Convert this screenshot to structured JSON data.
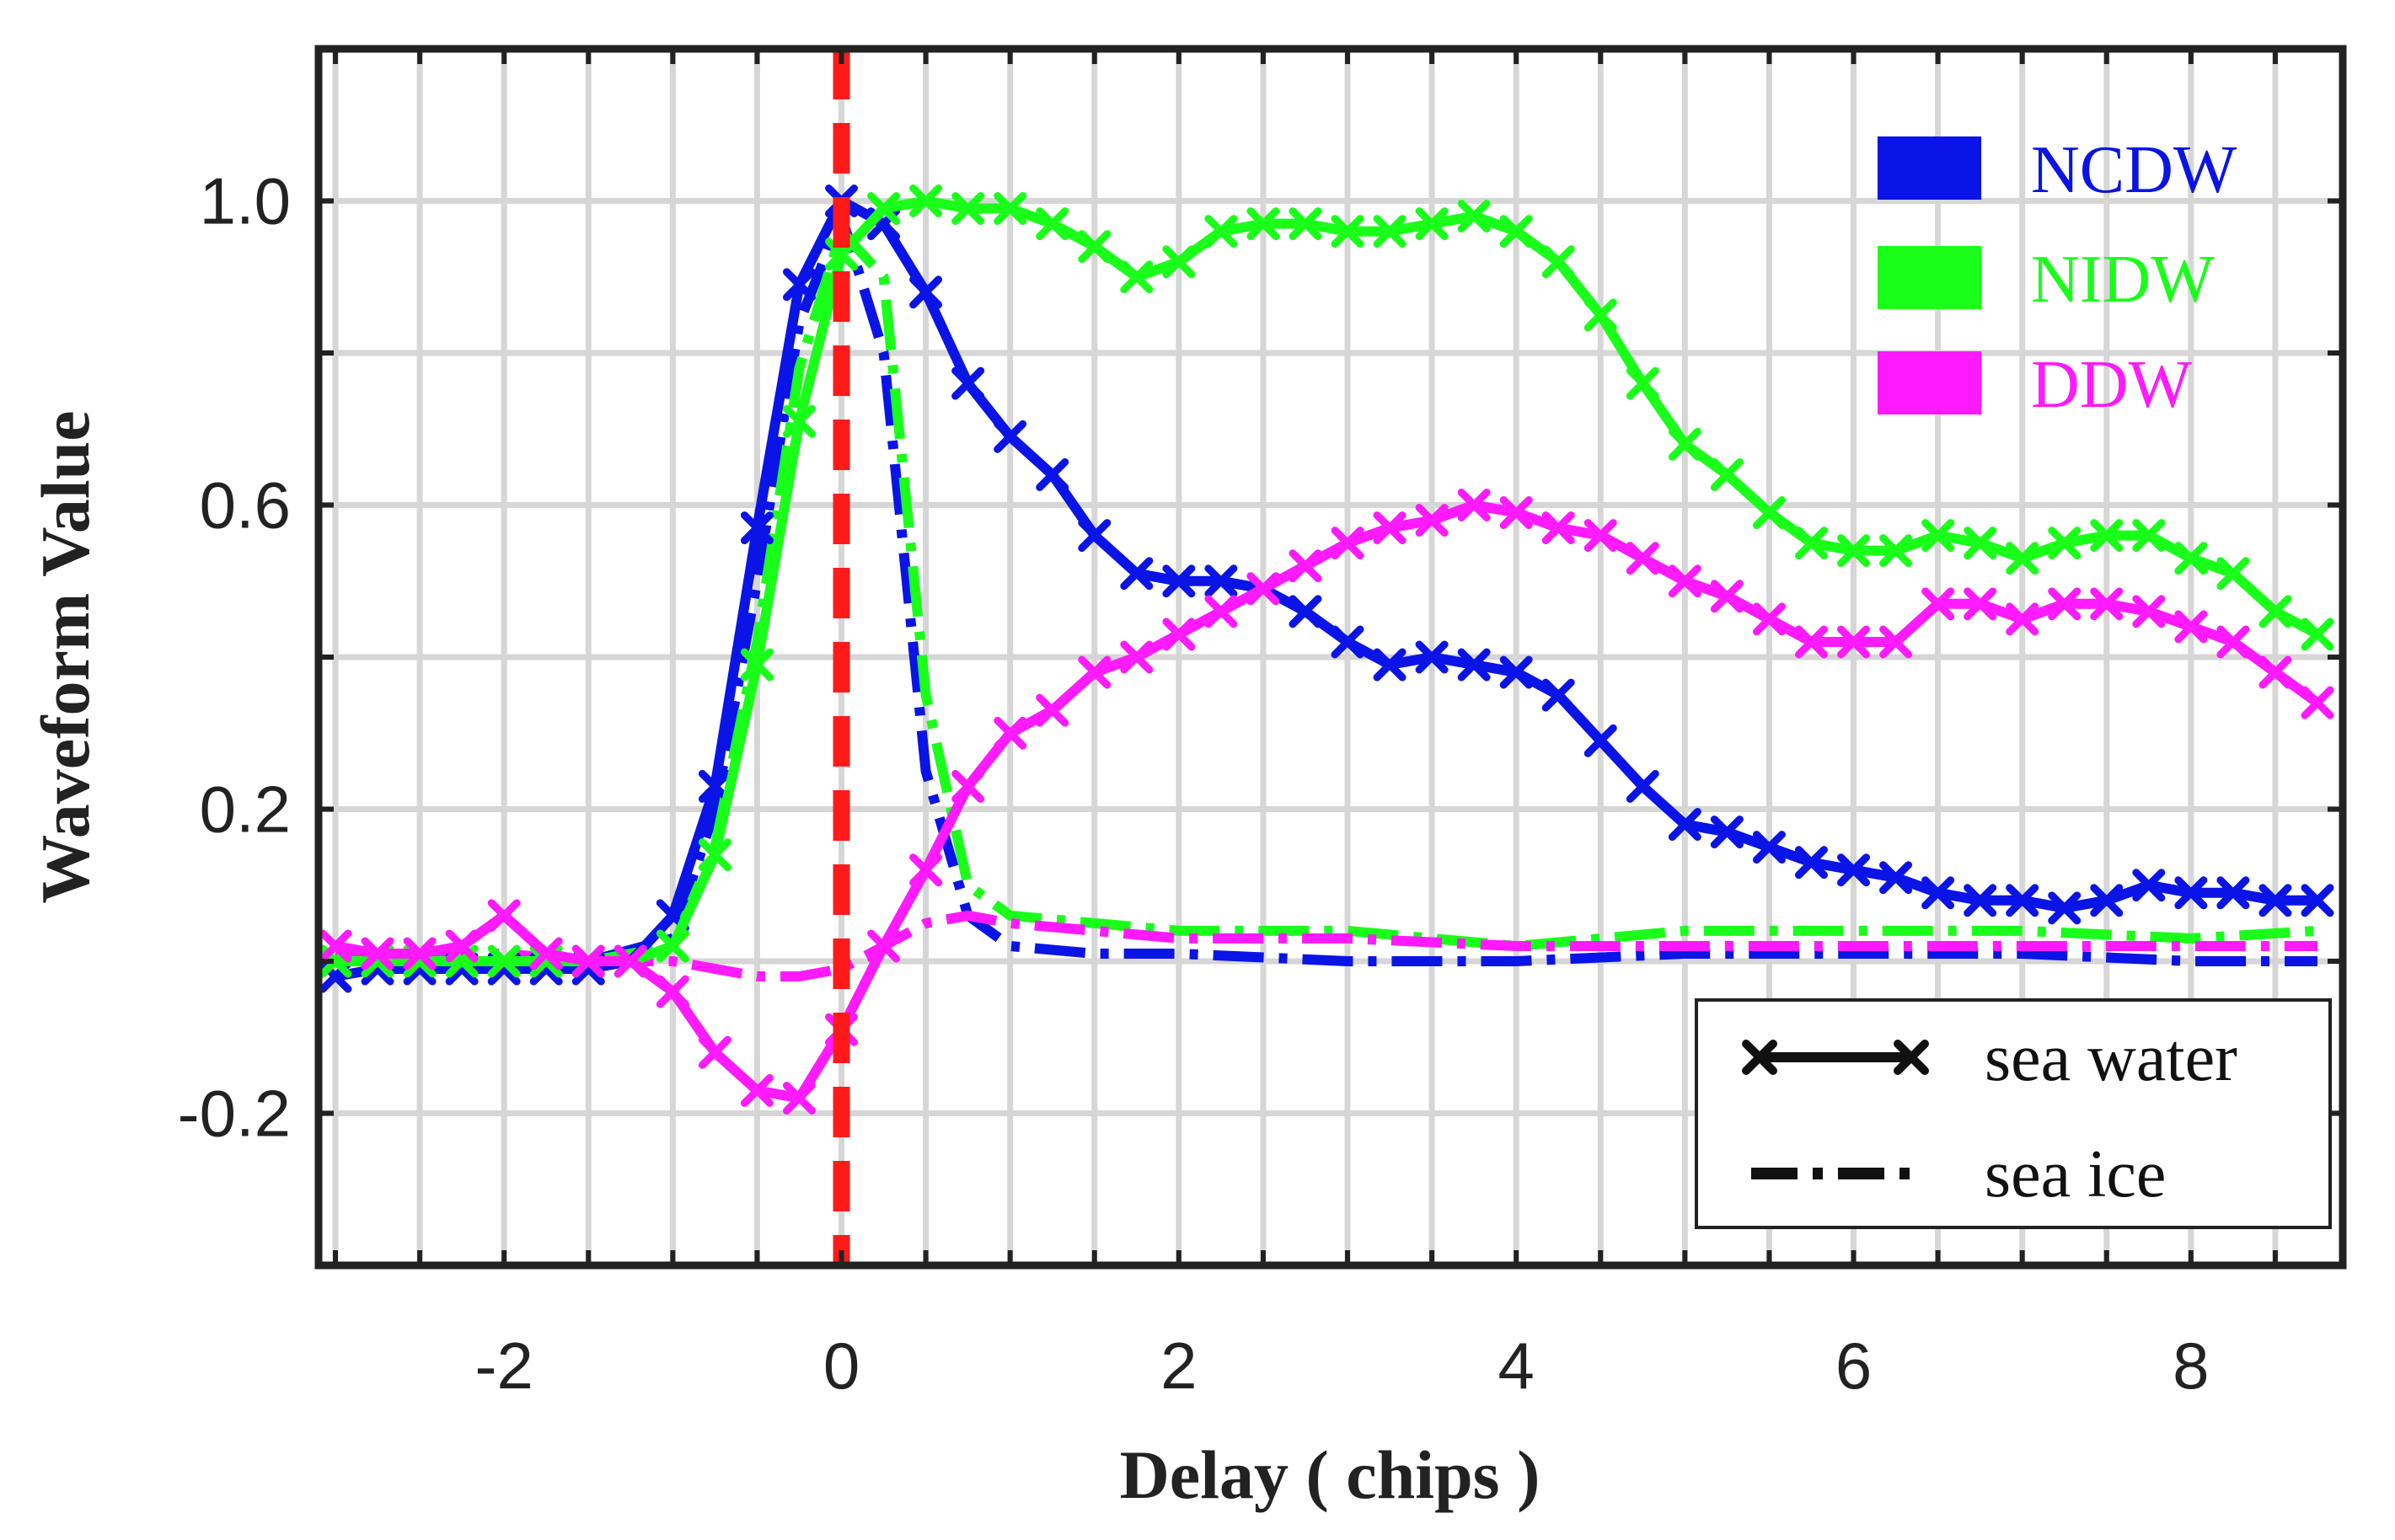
{
  "chart_data": {
    "type": "line",
    "title": "",
    "xlabel": "Delay ( chips )",
    "ylabel": "Waveform Value",
    "xlim": [
      -3.1,
      8.9
    ],
    "ylim": [
      -0.4,
      1.2
    ],
    "grid": true,
    "x_ticks": [
      -2,
      0,
      2,
      4,
      6,
      8
    ],
    "x_tick_labels": [
      "-2",
      "0",
      "2",
      "4",
      "6",
      "8"
    ],
    "y_ticks": [
      -0.2,
      0.2,
      0.6,
      1.0
    ],
    "y_tick_labels": [
      "-0.2",
      "0.2",
      "0.6",
      "1.0"
    ],
    "reference_line": {
      "x": 0,
      "color": "#ff1a1a",
      "style": "dashed"
    },
    "colors": {
      "NCDW": "#0a14e6",
      "NIDW": "#1aff1a",
      "DDW": "#ff1aff"
    },
    "color_legend": {
      "position": "top-right",
      "entries": [
        {
          "label": "NCDW",
          "color": "#0a14e6"
        },
        {
          "label": "NIDW",
          "color": "#1aff1a"
        },
        {
          "label": "DDW",
          "color": "#ff1aff"
        }
      ]
    },
    "style_legend": {
      "position": "bottom-right",
      "entries": [
        {
          "label": "sea water",
          "style": "solid-with-x-markers"
        },
        {
          "label": "sea ice",
          "style": "dash-dot"
        }
      ]
    },
    "series": [
      {
        "name": "NCDW",
        "surface": "sea water",
        "color": "#0a14e6",
        "style": "solid",
        "marker": "x",
        "x": [
          -3,
          -2.75,
          -2.5,
          -2.25,
          -2,
          -1.75,
          -1.5,
          -1.25,
          -1,
          -0.75,
          -0.5,
          -0.25,
          0,
          0.25,
          0.5,
          0.75,
          1,
          1.25,
          1.5,
          1.75,
          2,
          2.25,
          2.5,
          2.75,
          3,
          3.25,
          3.5,
          3.75,
          4,
          4.25,
          4.5,
          4.75,
          5,
          5.25,
          5.5,
          5.75,
          6,
          6.25,
          6.5,
          6.75,
          7,
          7.25,
          7.5,
          7.75,
          8,
          8.25,
          8.5,
          8.75
        ],
        "y": [
          -0.02,
          -0.01,
          -0.01,
          -0.01,
          -0.01,
          -0.01,
          -0.01,
          0,
          0.06,
          0.23,
          0.57,
          0.89,
          1.0,
          0.97,
          0.88,
          0.76,
          0.69,
          0.64,
          0.56,
          0.51,
          0.5,
          0.5,
          0.49,
          0.46,
          0.42,
          0.39,
          0.4,
          0.39,
          0.38,
          0.35,
          0.29,
          0.23,
          0.18,
          0.17,
          0.15,
          0.13,
          0.12,
          0.11,
          0.09,
          0.08,
          0.08,
          0.07,
          0.08,
          0.1,
          0.09,
          0.09,
          0.08,
          0.08
        ]
      },
      {
        "name": "NIDW",
        "surface": "sea water",
        "color": "#1aff1a",
        "style": "solid",
        "marker": "x",
        "x": [
          -3,
          -2.75,
          -2.5,
          -2.25,
          -2,
          -1.75,
          -1.5,
          -1.25,
          -1,
          -0.75,
          -0.5,
          -0.25,
          0,
          0.25,
          0.5,
          0.75,
          1,
          1.25,
          1.5,
          1.75,
          2,
          2.25,
          2.5,
          2.75,
          3,
          3.25,
          3.5,
          3.75,
          4,
          4.25,
          4.5,
          4.75,
          5,
          5.25,
          5.5,
          5.75,
          6,
          6.25,
          6.5,
          6.75,
          7,
          7.25,
          7.5,
          7.75,
          8,
          8.25,
          8.5,
          8.75
        ],
        "y": [
          0,
          0,
          0,
          0,
          0,
          0,
          0,
          0,
          0.02,
          0.14,
          0.39,
          0.71,
          0.93,
          0.99,
          1.0,
          0.99,
          0.99,
          0.97,
          0.94,
          0.9,
          0.92,
          0.96,
          0.97,
          0.97,
          0.96,
          0.96,
          0.97,
          0.98,
          0.96,
          0.92,
          0.85,
          0.76,
          0.68,
          0.64,
          0.59,
          0.55,
          0.54,
          0.54,
          0.56,
          0.55,
          0.53,
          0.55,
          0.56,
          0.56,
          0.53,
          0.51,
          0.46,
          0.43
        ]
      },
      {
        "name": "DDW",
        "surface": "sea water",
        "color": "#ff1aff",
        "style": "solid",
        "marker": "x",
        "x": [
          -3,
          -2.75,
          -2.5,
          -2.25,
          -2,
          -1.75,
          -1.5,
          -1.25,
          -1,
          -0.75,
          -0.5,
          -0.25,
          0,
          0.25,
          0.5,
          0.75,
          1,
          1.25,
          1.5,
          1.75,
          2,
          2.25,
          2.5,
          2.75,
          3,
          3.25,
          3.5,
          3.75,
          4,
          4.25,
          4.5,
          4.75,
          5,
          5.25,
          5.5,
          5.75,
          6,
          6.25,
          6.5,
          6.75,
          7,
          7.25,
          7.5,
          7.75,
          8,
          8.25,
          8.5,
          8.75
        ],
        "y": [
          0.02,
          0.01,
          0.01,
          0.02,
          0.06,
          0.01,
          0,
          0,
          -0.04,
          -0.12,
          -0.17,
          -0.18,
          -0.09,
          0.02,
          0.12,
          0.23,
          0.3,
          0.33,
          0.38,
          0.4,
          0.43,
          0.46,
          0.49,
          0.52,
          0.55,
          0.57,
          0.58,
          0.6,
          0.59,
          0.57,
          0.56,
          0.53,
          0.5,
          0.48,
          0.45,
          0.42,
          0.42,
          0.42,
          0.47,
          0.47,
          0.45,
          0.47,
          0.47,
          0.46,
          0.44,
          0.42,
          0.38,
          0.34
        ]
      },
      {
        "name": "NCDW",
        "surface": "sea ice",
        "color": "#0a14e6",
        "style": "dash-dot",
        "marker": "none",
        "x": [
          -3,
          -1.5,
          -1,
          -0.75,
          -0.5,
          -0.25,
          0,
          0.25,
          0.5,
          0.75,
          1,
          1.5,
          2,
          3,
          4,
          5,
          6,
          7,
          8,
          8.75
        ],
        "y": [
          0,
          0,
          0.03,
          0.2,
          0.5,
          0.84,
          0.98,
          0.8,
          0.25,
          0.06,
          0.02,
          0.01,
          0.01,
          0,
          0,
          0.01,
          0.01,
          0.01,
          0,
          0
        ]
      },
      {
        "name": "NIDW",
        "surface": "sea ice",
        "color": "#1aff1a",
        "style": "dash-dot",
        "marker": "none",
        "x": [
          -3,
          -1.5,
          -1,
          -0.75,
          -0.5,
          -0.25,
          0,
          0.25,
          0.5,
          0.75,
          1,
          1.5,
          2,
          3,
          4,
          5,
          6,
          7,
          8,
          8.75
        ],
        "y": [
          0,
          0,
          0.02,
          0.15,
          0.42,
          0.78,
          0.96,
          0.9,
          0.35,
          0.1,
          0.06,
          0.05,
          0.04,
          0.04,
          0.02,
          0.04,
          0.04,
          0.04,
          0.03,
          0.04
        ]
      },
      {
        "name": "DDW",
        "surface": "sea ice",
        "color": "#ff1aff",
        "style": "dash-dot",
        "marker": "none",
        "x": [
          -3,
          -2,
          -1.5,
          -1,
          -0.5,
          -0.25,
          0,
          0.25,
          0.5,
          0.75,
          1,
          1.5,
          2,
          3,
          4,
          5,
          6,
          7,
          8,
          8.75
        ],
        "y": [
          0.01,
          0.01,
          0,
          0,
          -0.02,
          -0.02,
          -0.01,
          0.02,
          0.05,
          0.06,
          0.05,
          0.04,
          0.03,
          0.03,
          0.02,
          0.02,
          0.02,
          0.02,
          0.02,
          0.02
        ]
      }
    ]
  }
}
